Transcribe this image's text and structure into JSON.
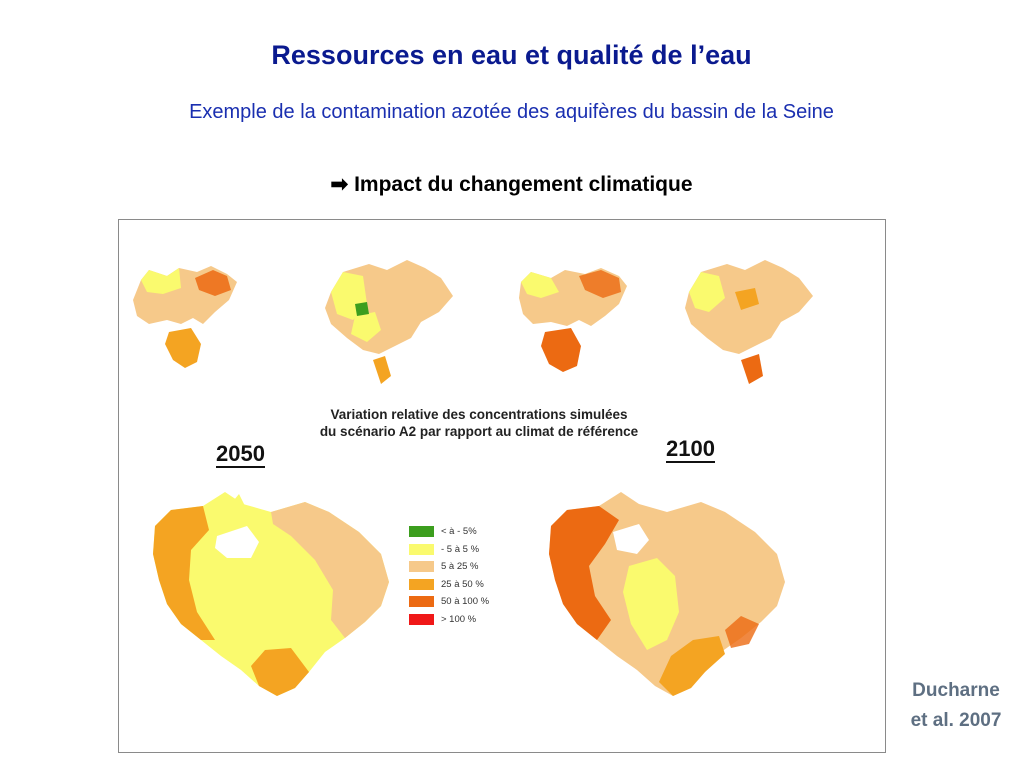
{
  "slide": {
    "title": "Ressources en eau et qualité de l’eau",
    "subtitle": "Exemple de la contamination azotée des aquifères du bassin de la Seine",
    "impact_arrow": "➡",
    "impact_text": "Impact du changement climatique"
  },
  "figure": {
    "caption_line1": "Variation relative des concentrations simulées",
    "caption_line2": "du scénario A2 par rapport au climat de référence",
    "year_left": "2050",
    "year_right": "2100",
    "legend": [
      {
        "label": "< à - 5%",
        "color": "#3c9e1e"
      },
      {
        "label": "- 5 à 5 %",
        "color": "#fafa6e"
      },
      {
        "label": "5 à 25 %",
        "color": "#f6c98a"
      },
      {
        "label": "25 à 50 %",
        "color": "#f4a422"
      },
      {
        "label": "50 à 100 %",
        "color": "#ec6a12"
      },
      {
        "label": "> 100 %",
        "color": "#f01818"
      }
    ]
  },
  "credit": {
    "line1": "Ducharne",
    "line2": "et al. 2007"
  }
}
